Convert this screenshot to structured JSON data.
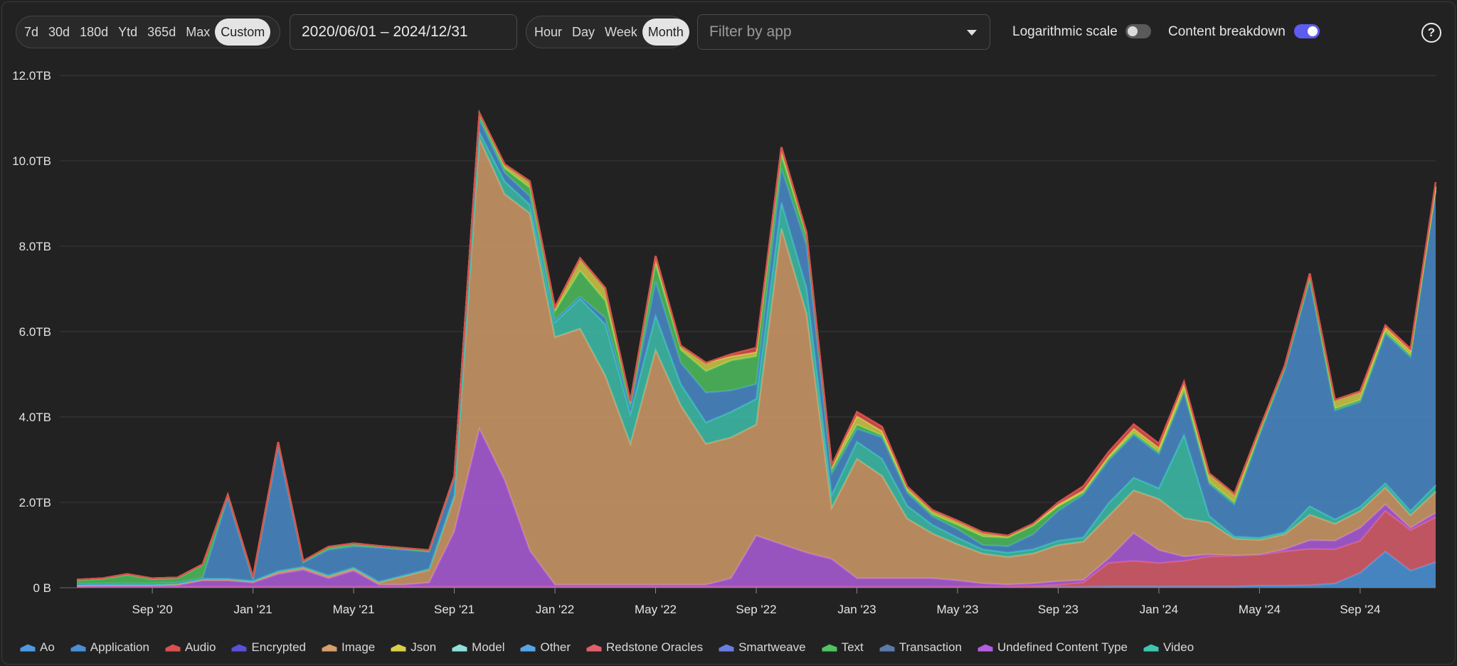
{
  "toolbar": {
    "ranges": [
      "7d",
      "30d",
      "180d",
      "Ytd",
      "365d",
      "Max",
      "Custom"
    ],
    "active_range": "Custom",
    "date_range": "2020/06/01 – 2024/12/31",
    "granularities": [
      "Hour",
      "Day",
      "Week",
      "Month"
    ],
    "active_granularity": "Month",
    "app_filter_placeholder": "Filter by app",
    "log_scale_label": "Logarithmic scale",
    "log_scale_on": false,
    "breakdown_label": "Content breakdown",
    "breakdown_on": true,
    "help_glyph": "?",
    "accent_color": "#5c5cf0"
  },
  "chart_data": {
    "type": "area",
    "stacked": true,
    "x": [
      "2020-06",
      "2020-07",
      "2020-08",
      "2020-09",
      "2020-10",
      "2020-11",
      "2020-12",
      "2021-01",
      "2021-02",
      "2021-03",
      "2021-04",
      "2021-05",
      "2021-06",
      "2021-07",
      "2021-08",
      "2021-09",
      "2021-10",
      "2021-11",
      "2021-12",
      "2022-01",
      "2022-02",
      "2022-03",
      "2022-04",
      "2022-05",
      "2022-06",
      "2022-07",
      "2022-08",
      "2022-09",
      "2022-10",
      "2022-11",
      "2022-12",
      "2023-01",
      "2023-02",
      "2023-03",
      "2023-04",
      "2023-05",
      "2023-06",
      "2023-07",
      "2023-08",
      "2023-09",
      "2023-10",
      "2023-11",
      "2023-12",
      "2024-01",
      "2024-02",
      "2024-03",
      "2024-04",
      "2024-05",
      "2024-06",
      "2024-07",
      "2024-08",
      "2024-09",
      "2024-10",
      "2024-11",
      "2024-12"
    ],
    "x_tick_labels": [
      {
        "x": "2020-09",
        "label": "Sep '20"
      },
      {
        "x": "2021-01",
        "label": "Jan '21"
      },
      {
        "x": "2021-05",
        "label": "May '21"
      },
      {
        "x": "2021-09",
        "label": "Sep '21"
      },
      {
        "x": "2022-01",
        "label": "Jan '22"
      },
      {
        "x": "2022-05",
        "label": "May '22"
      },
      {
        "x": "2022-09",
        "label": "Sep '22"
      },
      {
        "x": "2023-01",
        "label": "Jan '23"
      },
      {
        "x": "2023-05",
        "label": "May '23"
      },
      {
        "x": "2023-09",
        "label": "Sep '23"
      },
      {
        "x": "2024-01",
        "label": "Jan '24"
      },
      {
        "x": "2024-05",
        "label": "May '24"
      },
      {
        "x": "2024-09",
        "label": "Sep '24"
      }
    ],
    "y_ticks": [
      {
        "value": 0,
        "label": "0 B"
      },
      {
        "value": 2,
        "label": "2.0TB"
      },
      {
        "value": 4,
        "label": "4.0TB"
      },
      {
        "value": 6,
        "label": "6.0TB"
      },
      {
        "value": 8,
        "label": "8.0TB"
      },
      {
        "value": 10,
        "label": "10.0TB"
      },
      {
        "value": 12,
        "label": "12.0TB"
      }
    ],
    "ylim": [
      0,
      12
    ],
    "y_unit": "TB",
    "grid": true,
    "legend_position": "bottom",
    "series": [
      {
        "name": "Ao",
        "color": "#4d9ae0",
        "values": [
          0.02,
          0.02,
          0.02,
          0.02,
          0.02,
          0.02,
          0.02,
          0.02,
          0.02,
          0.02,
          0.02,
          0.02,
          0.02,
          0.02,
          0.02,
          0.02,
          0.02,
          0.02,
          0.02,
          0.02,
          0.02,
          0.02,
          0.02,
          0.02,
          0.02,
          0.02,
          0.02,
          0.02,
          0.02,
          0.02,
          0.02,
          0.02,
          0.02,
          0.02,
          0.02,
          0.02,
          0.02,
          0.02,
          0.02,
          0.02,
          0.02,
          0.03,
          0.03,
          0.03,
          0.03,
          0.03,
          0.03,
          0.05,
          0.05,
          0.06,
          0.1,
          0.35,
          0.85,
          0.4,
          0.6
        ]
      },
      {
        "name": "Redstone Oracles",
        "color": "#e0606e",
        "values": [
          0,
          0,
          0,
          0,
          0,
          0,
          0,
          0,
          0,
          0,
          0,
          0,
          0,
          0,
          0,
          0,
          0,
          0,
          0,
          0,
          0,
          0,
          0,
          0,
          0,
          0,
          0,
          0,
          0,
          0,
          0,
          0,
          0,
          0,
          0,
          0,
          0,
          0,
          0.02,
          0.05,
          0.1,
          0.55,
          0.6,
          0.55,
          0.6,
          0.7,
          0.72,
          0.72,
          0.8,
          0.85,
          0.8,
          0.75,
          0.95,
          0.95,
          1.05
        ]
      },
      {
        "name": "Undefined Content Type",
        "color": "#b15fe0",
        "values": [
          0.01,
          0.02,
          0.02,
          0.02,
          0.04,
          0.15,
          0.15,
          0.1,
          0.3,
          0.4,
          0.2,
          0.38,
          0.05,
          0.05,
          0.1,
          1.3,
          3.7,
          2.5,
          0.85,
          0.05,
          0.05,
          0.05,
          0.05,
          0.05,
          0.05,
          0.05,
          0.2,
          1.2,
          1.0,
          0.8,
          0.65,
          0.2,
          0.2,
          0.2,
          0.2,
          0.15,
          0.08,
          0.05,
          0.06,
          0.08,
          0.06,
          0.1,
          0.65,
          0.3,
          0.1,
          0.05,
          0.0,
          0.0,
          0.05,
          0.2,
          0.2,
          0.3,
          0.15,
          0.05,
          0.1
        ]
      },
      {
        "name": "Image",
        "color": "#d6a06a",
        "values": [
          0.02,
          0.02,
          0.02,
          0.02,
          0.02,
          0.02,
          0.02,
          0.02,
          0.05,
          0.05,
          0.05,
          0.05,
          0.05,
          0.2,
          0.3,
          0.8,
          6.8,
          6.7,
          7.9,
          5.8,
          6.0,
          4.9,
          3.3,
          5.5,
          4.2,
          3.3,
          3.3,
          2.6,
          7.4,
          5.6,
          1.2,
          2.8,
          2.4,
          1.4,
          1.05,
          0.85,
          0.7,
          0.65,
          0.7,
          0.85,
          0.9,
          1.0,
          1.0,
          1.2,
          0.9,
          0.75,
          0.4,
          0.35,
          0.35,
          0.6,
          0.4,
          0.4,
          0.4,
          0.3,
          0.5
        ]
      },
      {
        "name": "Video",
        "color": "#3ec6b0",
        "values": [
          0.02,
          0.02,
          0.02,
          0.02,
          0.02,
          0.02,
          0.02,
          0.02,
          0.02,
          0.02,
          0.02,
          0.02,
          0.02,
          0.02,
          0.02,
          0.05,
          0.15,
          0.3,
          0.2,
          0.35,
          0.7,
          1.2,
          0.7,
          0.8,
          0.5,
          0.5,
          0.6,
          0.6,
          0.6,
          0.6,
          0.3,
          0.4,
          0.4,
          0.3,
          0.2,
          0.15,
          0.1,
          0.1,
          0.1,
          0.1,
          0.1,
          0.3,
          0.3,
          0.25,
          1.95,
          0.15,
          0.05,
          0.05,
          0.05,
          0.2,
          0.1,
          0.1,
          0.1,
          0.1,
          0.15
        ]
      },
      {
        "name": "Application",
        "color": "#4a8fd0",
        "values": [
          0.02,
          0.02,
          0.02,
          0.02,
          0.02,
          0.02,
          1.9,
          0.02,
          2.9,
          0.1,
          0.6,
          0.5,
          0.8,
          0.6,
          0.4,
          0.4,
          0.3,
          0.2,
          0.2,
          0.05,
          0.05,
          0.15,
          0.15,
          0.8,
          0.5,
          0.7,
          0.5,
          0.35,
          0.8,
          1.0,
          0.5,
          0.3,
          0.5,
          0.3,
          0.2,
          0.2,
          0.1,
          0.15,
          0.35,
          0.7,
          1.0,
          1.0,
          1.0,
          0.8,
          1.0,
          0.75,
          0.75,
          2.4,
          3.8,
          5.3,
          2.55,
          2.45,
          3.5,
          3.6,
          6.9
        ]
      },
      {
        "name": "Text",
        "color": "#4fc460",
        "values": [
          0.08,
          0.1,
          0.2,
          0.1,
          0.1,
          0.3,
          0.05,
          0.05,
          0.1,
          0.02,
          0.05,
          0.05,
          0.02,
          0.02,
          0.02,
          0.02,
          0.1,
          0.1,
          0.2,
          0.2,
          0.6,
          0.4,
          0.1,
          0.4,
          0.3,
          0.5,
          0.7,
          0.65,
          0.3,
          0.2,
          0.1,
          0.1,
          0.05,
          0.05,
          0.05,
          0.1,
          0.2,
          0.2,
          0.2,
          0.1,
          0.05,
          0.05,
          0.05,
          0.05,
          0.05,
          0.05,
          0.05,
          0.05,
          0.05,
          0.05,
          0.05,
          0.05,
          0.05,
          0.05,
          0.05
        ]
      },
      {
        "name": "Json",
        "color": "#d8cf4a",
        "values": [
          0.02,
          0.02,
          0.02,
          0.02,
          0.02,
          0.02,
          0.02,
          0.02,
          0.02,
          0.02,
          0.02,
          0.02,
          0.02,
          0.02,
          0.02,
          0.02,
          0.05,
          0.1,
          0.15,
          0.1,
          0.3,
          0.3,
          0.05,
          0.2,
          0.1,
          0.2,
          0.1,
          0.1,
          0.2,
          0.1,
          0.1,
          0.2,
          0.1,
          0.1,
          0.1,
          0.1,
          0.1,
          0.05,
          0.05,
          0.05,
          0.05,
          0.05,
          0.1,
          0.1,
          0.15,
          0.2,
          0.2,
          0.1,
          0.05,
          0.1,
          0.2,
          0.2,
          0.1,
          0.1,
          0.05
        ]
      },
      {
        "name": "Audio",
        "color": "#d9504e",
        "values": [
          0,
          0,
          0,
          0,
          0,
          0,
          0,
          0,
          0,
          0,
          0,
          0,
          0,
          0,
          0,
          0,
          0,
          0,
          0,
          0,
          0,
          0,
          0,
          0,
          0,
          0,
          0.05,
          0.1,
          0,
          0,
          0,
          0.1,
          0.1,
          0,
          0,
          0,
          0,
          0,
          0,
          0.05,
          0.1,
          0.1,
          0.1,
          0.1,
          0.05,
          0,
          0,
          0,
          0,
          0,
          0,
          0,
          0.05,
          0.05,
          0.1
        ]
      },
      {
        "name": "Other",
        "color": "#56a6e6",
        "values": [
          0,
          0,
          0,
          0,
          0,
          0,
          0,
          0,
          0,
          0,
          0,
          0,
          0,
          0,
          0,
          0,
          0,
          0,
          0,
          0,
          0,
          0,
          0,
          0,
          0,
          0,
          0,
          0,
          0,
          0,
          0,
          0,
          0,
          0,
          0,
          0,
          0,
          0,
          0,
          0,
          0,
          0,
          0,
          0,
          0,
          0,
          0,
          0,
          0,
          0,
          0,
          0,
          0,
          0,
          0
        ]
      },
      {
        "name": "Encrypted",
        "color": "#5a4fd6",
        "values": [
          0,
          0,
          0,
          0,
          0,
          0,
          0,
          0,
          0,
          0,
          0,
          0,
          0,
          0,
          0,
          0,
          0,
          0,
          0,
          0,
          0,
          0,
          0,
          0,
          0,
          0,
          0,
          0,
          0,
          0,
          0,
          0,
          0,
          0,
          0,
          0,
          0,
          0,
          0,
          0,
          0,
          0,
          0,
          0,
          0,
          0,
          0,
          0,
          0,
          0,
          0,
          0,
          0,
          0,
          0
        ]
      },
      {
        "name": "Model",
        "color": "#8fe0da",
        "values": [
          0,
          0,
          0,
          0,
          0,
          0,
          0,
          0,
          0,
          0,
          0,
          0,
          0,
          0,
          0,
          0,
          0,
          0,
          0,
          0,
          0,
          0,
          0,
          0,
          0,
          0,
          0,
          0,
          0,
          0,
          0,
          0,
          0,
          0,
          0,
          0,
          0,
          0,
          0,
          0,
          0,
          0,
          0,
          0,
          0,
          0,
          0,
          0,
          0,
          0,
          0,
          0,
          0,
          0,
          0
        ]
      },
      {
        "name": "Smartweave",
        "color": "#6a7ee0",
        "values": [
          0,
          0,
          0,
          0,
          0,
          0,
          0,
          0,
          0,
          0,
          0,
          0,
          0,
          0,
          0,
          0,
          0,
          0,
          0,
          0,
          0,
          0,
          0,
          0,
          0,
          0,
          0,
          0,
          0,
          0,
          0,
          0,
          0,
          0,
          0,
          0,
          0,
          0,
          0,
          0,
          0,
          0,
          0,
          0,
          0,
          0,
          0,
          0,
          0,
          0,
          0,
          0,
          0,
          0,
          0
        ]
      },
      {
        "name": "Transaction",
        "color": "#5b7aa8",
        "values": [
          0,
          0,
          0,
          0,
          0,
          0,
          0,
          0,
          0,
          0,
          0,
          0,
          0,
          0,
          0,
          0,
          0,
          0,
          0,
          0,
          0,
          0,
          0,
          0,
          0,
          0,
          0,
          0,
          0,
          0,
          0,
          0,
          0,
          0,
          0,
          0,
          0,
          0,
          0,
          0,
          0,
          0,
          0,
          0,
          0,
          0,
          0,
          0,
          0,
          0,
          0,
          0,
          0,
          0,
          0
        ]
      }
    ],
    "legend": [
      {
        "name": "Ao",
        "color": "#4d9ae0"
      },
      {
        "name": "Application",
        "color": "#4a8fd0"
      },
      {
        "name": "Audio",
        "color": "#d9504e"
      },
      {
        "name": "Encrypted",
        "color": "#5a4fd6"
      },
      {
        "name": "Image",
        "color": "#d6a06a"
      },
      {
        "name": "Json",
        "color": "#d8cf4a"
      },
      {
        "name": "Model",
        "color": "#8fe0da"
      },
      {
        "name": "Other",
        "color": "#56a6e6"
      },
      {
        "name": "Redstone Oracles",
        "color": "#e0606e"
      },
      {
        "name": "Smartweave",
        "color": "#6a7ee0"
      },
      {
        "name": "Text",
        "color": "#4fc460"
      },
      {
        "name": "Transaction",
        "color": "#5b7aa8"
      },
      {
        "name": "Undefined Content Type",
        "color": "#b15fe0"
      },
      {
        "name": "Video",
        "color": "#3ec6b0"
      }
    ]
  }
}
